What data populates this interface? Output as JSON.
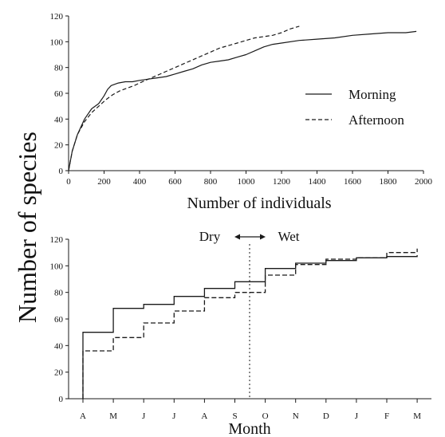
{
  "figure": {
    "ylabel": "Number of species",
    "line_color": "#1a1a1a"
  },
  "chart_data": [
    {
      "type": "line",
      "xlabel": "Number of individuals",
      "ylabel": "Number of species",
      "xlim": [
        0,
        2000
      ],
      "ylim": [
        0,
        120
      ],
      "xticks": [
        0,
        200,
        400,
        600,
        800,
        1000,
        1200,
        1400,
        1600,
        1800,
        2000
      ],
      "yticks": [
        0,
        20,
        40,
        60,
        80,
        100,
        120
      ],
      "grid": false,
      "legend_position": "right",
      "series": [
        {
          "name": "Morning",
          "style": "solid",
          "x": [
            0,
            20,
            50,
            90,
            130,
            170,
            200,
            220,
            240,
            280,
            320,
            360,
            400,
            450,
            500,
            550,
            600,
            650,
            700,
            750,
            800,
            850,
            900,
            950,
            1000,
            1050,
            1100,
            1150,
            1200,
            1300,
            1400,
            1500,
            1600,
            1700,
            1800,
            1900,
            1960
          ],
          "y": [
            0,
            15,
            28,
            40,
            48,
            52,
            58,
            63,
            66,
            68,
            69,
            69,
            70,
            71,
            72,
            73,
            75,
            77,
            79,
            82,
            84,
            85,
            86,
            88,
            90,
            93,
            96,
            98,
            99,
            101,
            102,
            103,
            105,
            106,
            107,
            107,
            108
          ]
        },
        {
          "name": "Afternoon",
          "style": "dashed",
          "x": [
            0,
            20,
            50,
            90,
            130,
            170,
            210,
            250,
            290,
            330,
            370,
            400,
            450,
            500,
            550,
            600,
            650,
            700,
            750,
            800,
            850,
            900,
            950,
            1000,
            1050,
            1100,
            1150,
            1200,
            1250,
            1300
          ],
          "y": [
            0,
            15,
            28,
            38,
            45,
            50,
            55,
            59,
            62,
            64,
            66,
            68,
            71,
            74,
            77,
            80,
            83,
            86,
            89,
            92,
            95,
            97,
            99,
            101,
            103,
            104,
            105,
            107,
            110,
            112
          ]
        }
      ]
    },
    {
      "type": "line",
      "xlabel": "Month",
      "ylabel": "Number of species",
      "categories": [
        "A",
        "M",
        "J",
        "J",
        "A",
        "S",
        "O",
        "N",
        "D",
        "J",
        "F",
        "M"
      ],
      "ylim": [
        0,
        120
      ],
      "yticks": [
        0,
        20,
        40,
        60,
        80,
        100,
        120
      ],
      "grid": false,
      "step": true,
      "season_annotation": {
        "left": "Dry",
        "right": "Wet",
        "divider_between": [
          "S",
          "O"
        ]
      },
      "series": [
        {
          "name": "Morning",
          "style": "solid",
          "values": [
            50,
            68,
            71,
            77,
            83,
            88,
            98,
            102,
            104,
            106,
            107,
            108
          ]
        },
        {
          "name": "Afternoon",
          "style": "dashed",
          "values": [
            36,
            46,
            57,
            66,
            76,
            80,
            93,
            101,
            105,
            106,
            110,
            113
          ]
        }
      ]
    }
  ]
}
